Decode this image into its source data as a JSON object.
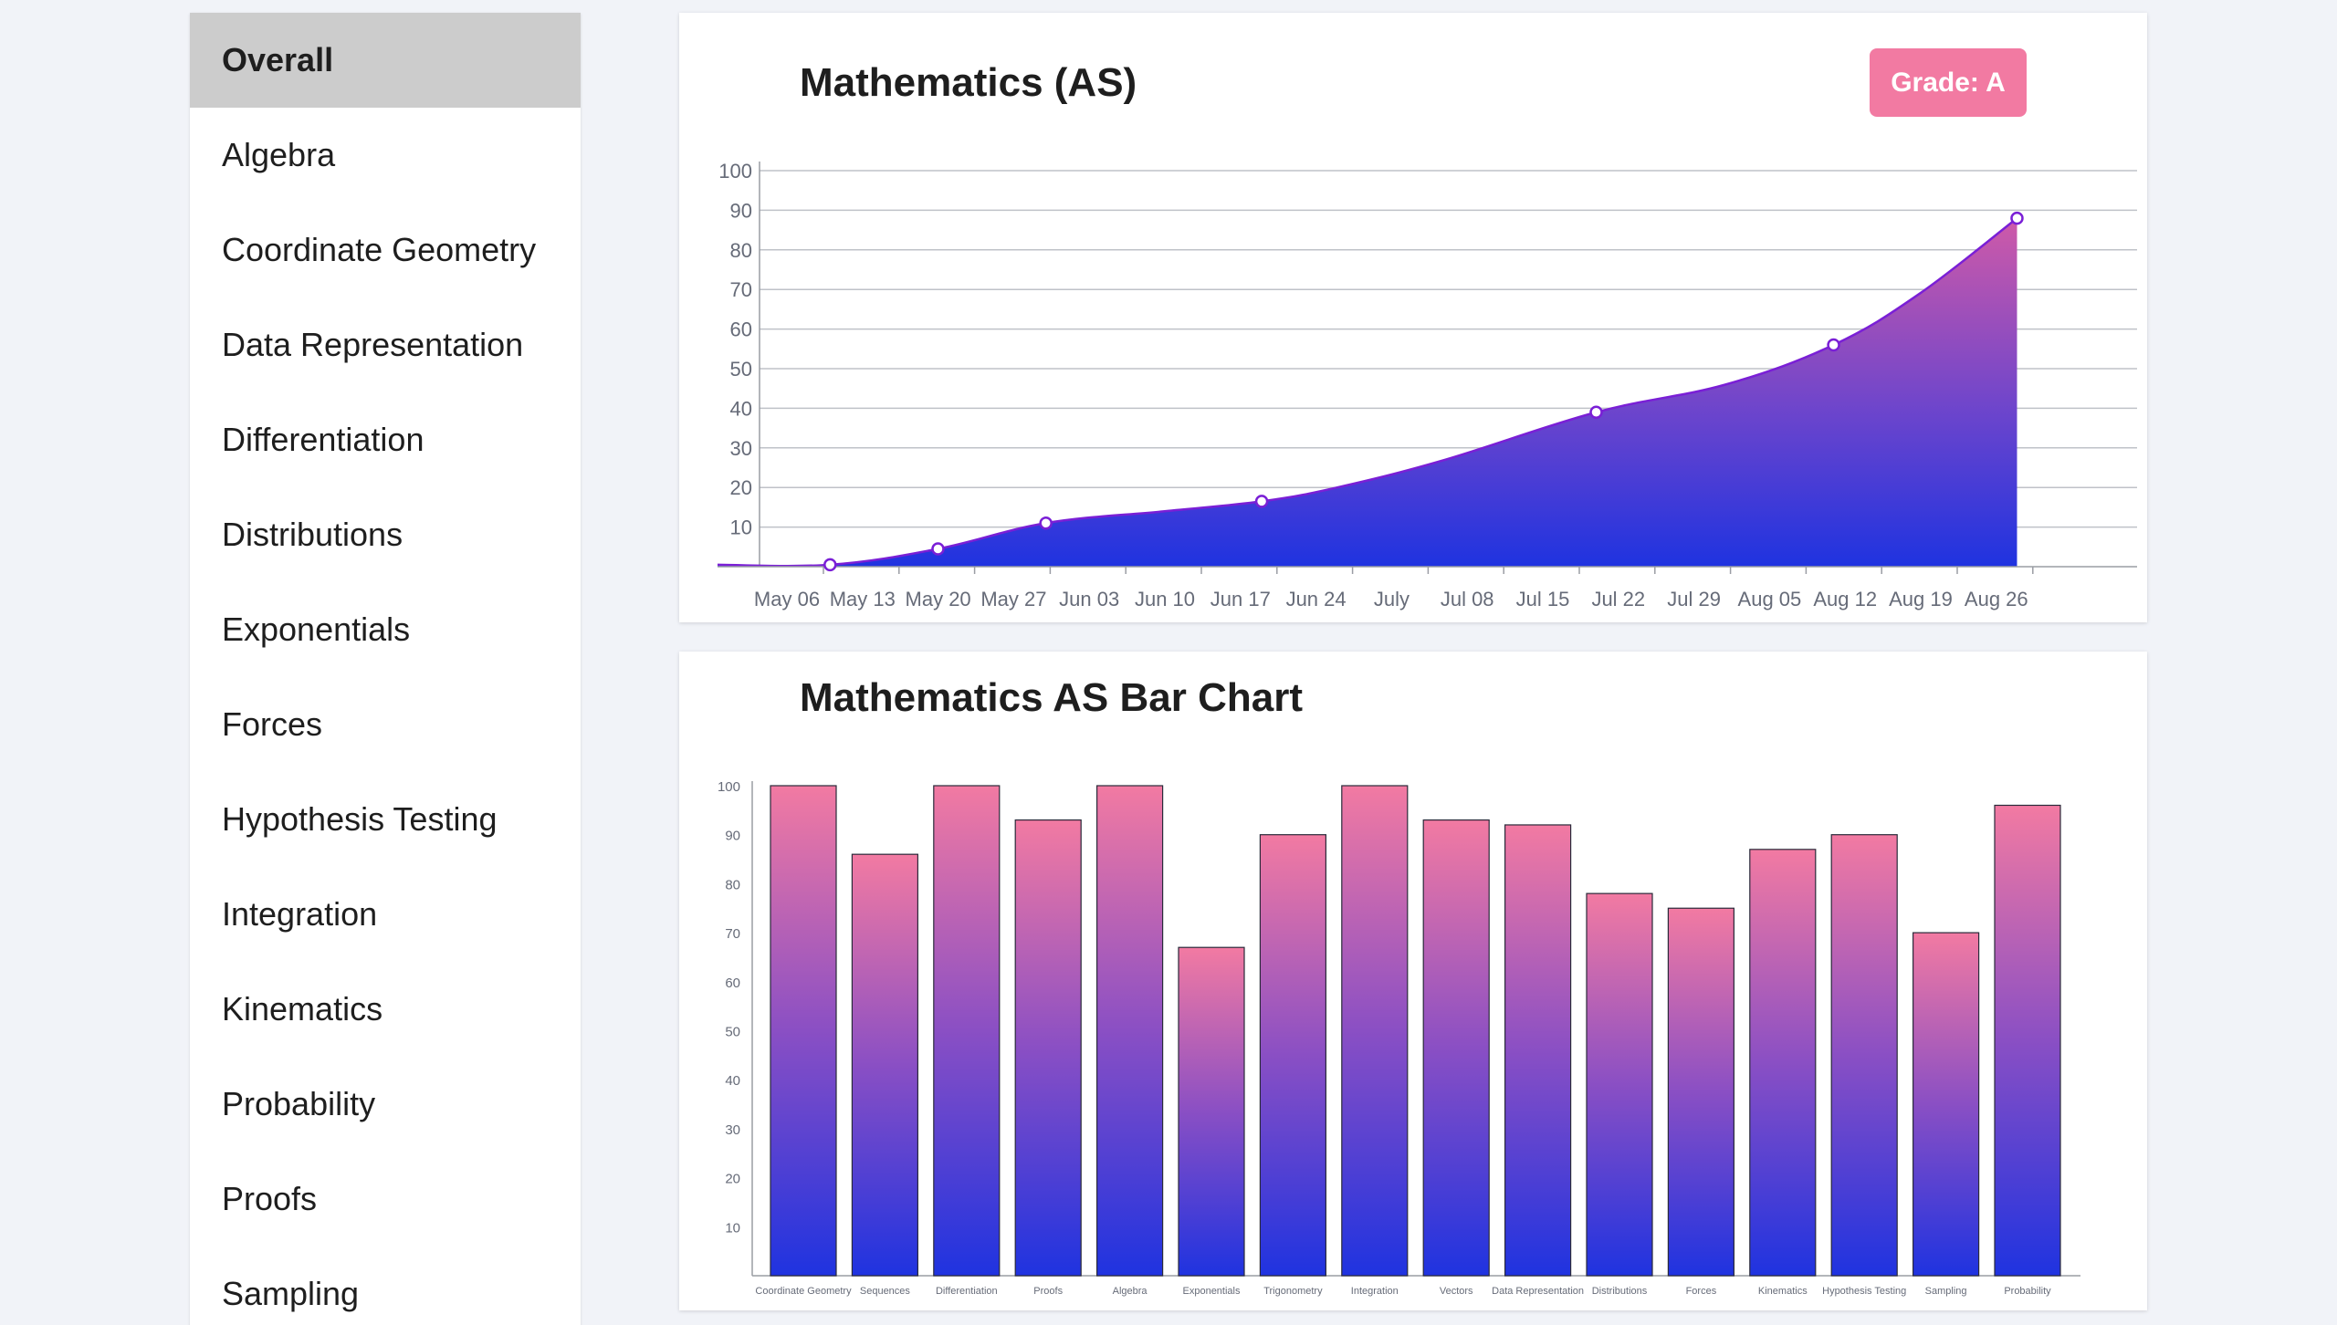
{
  "sidebar": {
    "items": [
      {
        "label": "Overall",
        "active": true
      },
      {
        "label": "Algebra"
      },
      {
        "label": "Coordinate Geometry"
      },
      {
        "label": "Data Representation"
      },
      {
        "label": "Differentiation"
      },
      {
        "label": "Distributions"
      },
      {
        "label": "Exponentials"
      },
      {
        "label": "Forces"
      },
      {
        "label": "Hypothesis Testing"
      },
      {
        "label": "Integration"
      },
      {
        "label": "Kinematics"
      },
      {
        "label": "Probability"
      },
      {
        "label": "Proofs"
      },
      {
        "label": "Sampling"
      }
    ]
  },
  "line_card": {
    "title": "Mathematics (AS)",
    "grade_label": "Grade: A"
  },
  "bar_card": {
    "title": "Mathematics AS Bar Chart"
  },
  "colors": {
    "accent_pink": "#f27aa2",
    "blue": "#1f33e0",
    "purple_line": "#7a1fd6"
  },
  "chart_data": [
    {
      "type": "area",
      "x_ticks": [
        "May 06",
        "May 13",
        "May 20",
        "May 27",
        "Jun 03",
        "Jun 10",
        "Jun 17",
        "Jun 24",
        "July",
        "Jul 08",
        "Jul 15",
        "Jul 22",
        "Jul 29",
        "Aug 05",
        "Aug 12",
        "Aug 19",
        "Aug 26"
      ],
      "y_ticks": [
        10,
        20,
        30,
        40,
        50,
        60,
        70,
        80,
        90,
        100
      ],
      "ylim": [
        0,
        100
      ],
      "grid": true,
      "points": [
        {
          "date": "May 01",
          "value": 0.5,
          "marker": false
        },
        {
          "date": "May 10",
          "value": 0.5,
          "marker": true
        },
        {
          "date": "May 20",
          "value": 4.5,
          "marker": true
        },
        {
          "date": "May 30",
          "value": 11,
          "marker": true
        },
        {
          "date": "Jun 10",
          "value": 14,
          "marker": false
        },
        {
          "date": "Jun 19",
          "value": 16.5,
          "marker": true
        },
        {
          "date": "Jun 26",
          "value": 20,
          "marker": false
        },
        {
          "date": "Jul 06",
          "value": 27,
          "marker": false
        },
        {
          "date": "Jul 20",
          "value": 39,
          "marker": true
        },
        {
          "date": "Aug 01",
          "value": 46,
          "marker": false
        },
        {
          "date": "Aug 11",
          "value": 56,
          "marker": true
        },
        {
          "date": "Aug 19",
          "value": 69,
          "marker": false
        },
        {
          "date": "Aug 28",
          "value": 88,
          "marker": true
        }
      ]
    },
    {
      "type": "bar",
      "categories": [
        "Coordinate Geometry",
        "Sequences",
        "Differentiation",
        "Proofs",
        "Algebra",
        "Exponentials",
        "Trigonometry",
        "Integration",
        "Vectors",
        "Data Representation",
        "Distributions",
        "Forces",
        "Kinematics",
        "Hypothesis Testing",
        "Sampling",
        "Probability"
      ],
      "values": [
        100,
        86,
        100,
        93,
        100,
        67,
        90,
        100,
        93,
        92,
        78,
        75,
        87,
        90,
        70,
        96
      ],
      "y_ticks": [
        10,
        20,
        30,
        40,
        50,
        60,
        70,
        80,
        90,
        100
      ],
      "ylim": [
        0,
        100
      ],
      "grid": false
    }
  ]
}
